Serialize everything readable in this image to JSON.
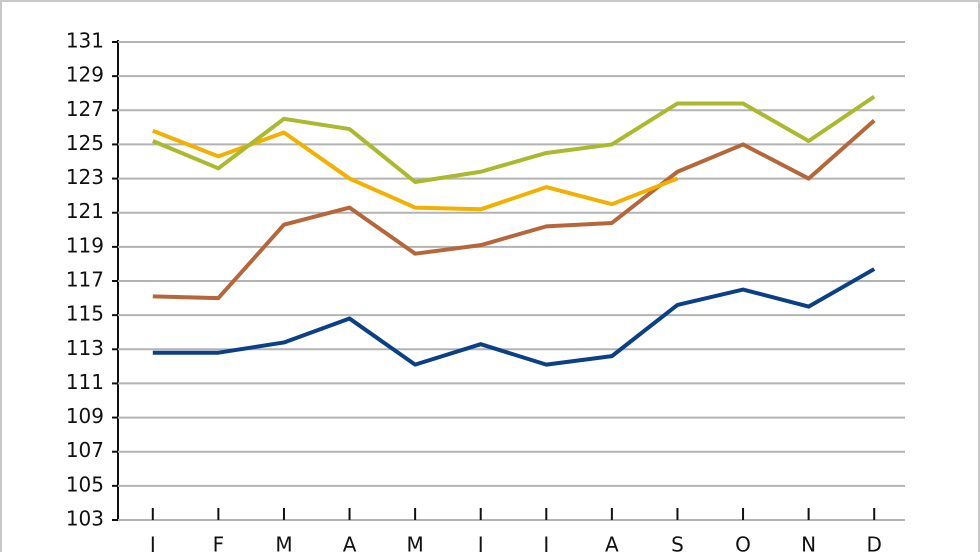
{
  "chart_data": {
    "type": "line",
    "categories": [
      "J",
      "F",
      "M",
      "A",
      "M",
      "J",
      "J",
      "A",
      "S",
      "O",
      "N",
      "D"
    ],
    "series": [
      {
        "color": "#0b3f86",
        "values": [
          112.8,
          112.8,
          113.4,
          114.8,
          112.1,
          113.3,
          112.1,
          112.6,
          115.6,
          116.5,
          115.5,
          117.7
        ]
      },
      {
        "color": "#b5663a",
        "values": [
          116.1,
          116.0,
          120.3,
          121.3,
          118.6,
          119.1,
          120.2,
          120.4,
          123.4,
          125.0,
          123.0,
          126.4
        ]
      },
      {
        "color": "#f2b000",
        "values": [
          125.8,
          124.3,
          125.7,
          123.0,
          121.3,
          121.2,
          122.5,
          121.5,
          123.0,
          null,
          null,
          null
        ]
      },
      {
        "color": "#aab92e",
        "values": [
          125.2,
          123.6,
          126.5,
          125.9,
          122.8,
          123.4,
          124.5,
          125.0,
          127.4,
          127.4,
          125.2,
          127.8
        ]
      }
    ],
    "ylim": [
      103,
      131
    ],
    "yticks": [
      103,
      105,
      107,
      109,
      111,
      113,
      115,
      117,
      119,
      121,
      123,
      125,
      127,
      129,
      131
    ],
    "grid": true
  }
}
